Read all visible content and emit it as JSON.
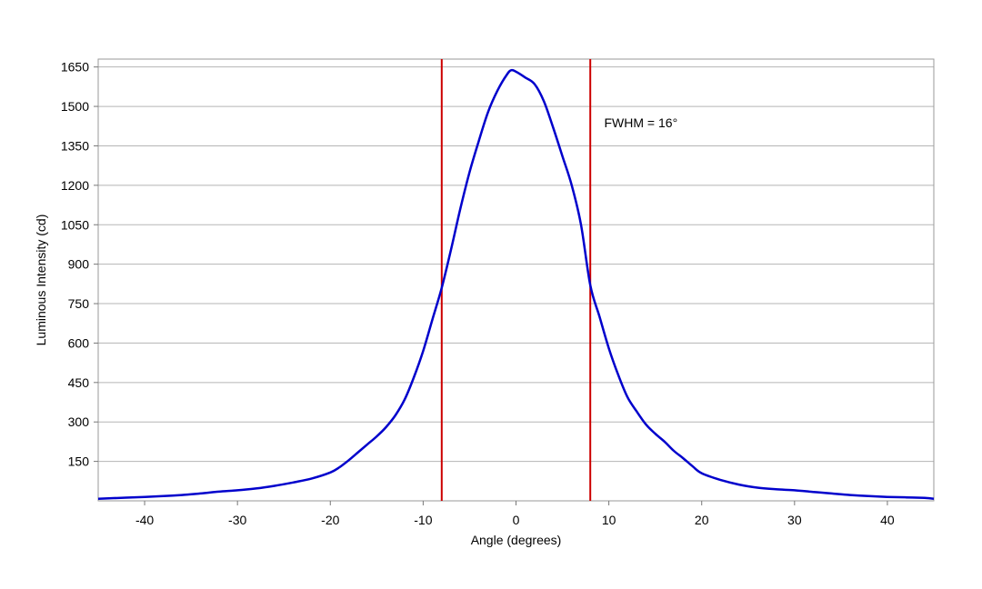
{
  "chart_data": {
    "type": "line",
    "title": "",
    "xlabel": "Angle (degrees)",
    "ylabel": "Luminous Intensity (cd)",
    "xlim": [
      -45,
      45
    ],
    "ylim": [
      0,
      1680
    ],
    "x_ticks": [
      -40,
      -30,
      -20,
      -10,
      0,
      10,
      20,
      30,
      40
    ],
    "y_ticks": [
      150,
      300,
      450,
      600,
      750,
      900,
      1050,
      1200,
      1350,
      1500,
      1650
    ],
    "grid": "horizontal",
    "series": [
      {
        "color": "#0000cc",
        "x": [
          -45,
          -42,
          -40,
          -38,
          -36,
          -34,
          -32,
          -30,
          -28,
          -26,
          -24,
          -22,
          -20,
          -19,
          -18,
          -17,
          -16,
          -15,
          -14,
          -13,
          -12,
          -11,
          -10,
          -9,
          -8,
          -7,
          -6,
          -5,
          -4,
          -3,
          -2,
          -1,
          -0.5,
          0,
          1,
          2,
          3,
          4,
          5,
          6,
          7,
          8,
          9,
          10,
          11,
          12,
          13,
          14,
          15,
          16,
          17,
          18,
          19,
          20,
          22,
          24,
          26,
          28,
          30,
          32,
          34,
          36,
          38,
          40,
          42,
          44,
          45
        ],
        "y": [
          8,
          12,
          15,
          18,
          22,
          28,
          35,
          40,
          47,
          57,
          70,
          85,
          108,
          128,
          155,
          185,
          215,
          245,
          280,
          325,
          385,
          470,
          570,
          690,
          810,
          955,
          1110,
          1250,
          1370,
          1480,
          1560,
          1620,
          1638,
          1632,
          1610,
          1585,
          1520,
          1420,
          1310,
          1200,
          1050,
          820,
          700,
          580,
          480,
          395,
          340,
          290,
          255,
          225,
          190,
          162,
          132,
          105,
          80,
          62,
          50,
          44,
          40,
          34,
          28,
          22,
          18,
          15,
          13,
          11,
          8
        ]
      }
    ],
    "vlines": [
      {
        "x": -8,
        "color": "#cc0000"
      },
      {
        "x": 8,
        "color": "#cc0000"
      }
    ],
    "annotations": [
      {
        "text": "FWHM = 16°",
        "x": 9.5,
        "y": 1420
      }
    ]
  }
}
